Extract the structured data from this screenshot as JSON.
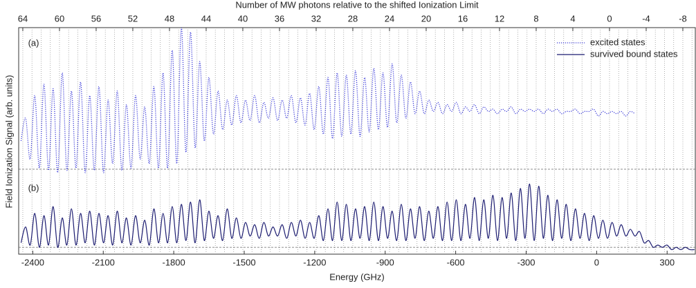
{
  "chart_data": {
    "type": "line",
    "title": "Number of MW photons relative to the shifted Ionization Limit",
    "x_label": "Energy (GHz)",
    "y_label": "Field Ionization Signal (arb. units)",
    "annotations": [
      {
        "text": "(a)",
        "x": -2420,
        "y": 93
      },
      {
        "text": "(b)",
        "x": -2420,
        "y": 29
      }
    ],
    "legend": "upper right",
    "xlim": [
      -2460,
      420
    ],
    "xticks": [
      -2400,
      -2100,
      -1800,
      -1500,
      -1200,
      -900,
      -600,
      -300,
      0,
      300
    ],
    "ylim": [
      0,
      100
    ],
    "x2lim": [
      64.45,
      -9.36
    ],
    "x2ticks": [
      64,
      60,
      56,
      52,
      48,
      44,
      40,
      36,
      32,
      28,
      24,
      20,
      16,
      12,
      8,
      4,
      0,
      -4,
      -8
    ],
    "x2grid": [
      64,
      63,
      62,
      61,
      60,
      59,
      58,
      57,
      56,
      55,
      54,
      53,
      52,
      51,
      50,
      49,
      48,
      47,
      46,
      45,
      44,
      43,
      42,
      41,
      40,
      39,
      38,
      37,
      36,
      35,
      34,
      33,
      32,
      31,
      30,
      29,
      28,
      27,
      26,
      25,
      24,
      23,
      22,
      21,
      20,
      19,
      18,
      17,
      16,
      15,
      14,
      13,
      12,
      11,
      10,
      9,
      8,
      7,
      6,
      5,
      4,
      3,
      2,
      1,
      0,
      -1,
      -2,
      -3,
      -4,
      -5,
      -6,
      -7,
      -8,
      -9
    ],
    "baselines": [
      37.5,
      3
    ],
    "x": [
      -2450,
      -2430.5,
      -2411,
      -2391.5,
      -2372,
      -2352.5,
      -2333,
      -2313.5,
      -2294,
      -2274.5,
      -2255,
      -2235.5,
      -2216,
      -2196.5,
      -2177,
      -2157.5,
      -2138,
      -2118.5,
      -2099,
      -2079.5,
      -2060,
      -2040.5,
      -2021,
      -2001.5,
      -1982,
      -1962.5,
      -1943,
      -1923.5,
      -1904,
      -1884.5,
      -1865,
      -1845.5,
      -1826,
      -1806.5,
      -1787,
      -1767.5,
      -1748,
      -1728.5,
      -1709,
      -1689.5,
      -1670,
      -1650.5,
      -1631,
      -1611.5,
      -1592,
      -1572.5,
      -1553,
      -1533.5,
      -1514,
      -1494.5,
      -1475,
      -1455.5,
      -1436,
      -1416.5,
      -1397,
      -1377.5,
      -1358,
      -1338.5,
      -1319,
      -1299.5,
      -1280,
      -1260.5,
      -1241,
      -1221.5,
      -1202,
      -1182.5,
      -1163,
      -1143.5,
      -1124,
      -1104.5,
      -1085,
      -1065.5,
      -1046,
      -1026.5,
      -1007,
      -987.5,
      -968,
      -948.5,
      -929,
      -909.5,
      -890,
      -870.5,
      -851,
      -831.5,
      -812,
      -792.5,
      -773,
      -753.5,
      -734,
      -714.5,
      -695,
      -675.5,
      -656,
      -636.5,
      -617,
      -597.5,
      -578,
      -558.5,
      -539,
      -519.5,
      -500,
      -480.5,
      -461,
      -441.5,
      -422,
      -402.5,
      -383,
      -363.5,
      -344,
      -324.5,
      -305,
      -285.5,
      -266,
      -246.5,
      -227,
      -207.5,
      -188,
      -168.5,
      -149,
      -129.5,
      -110,
      -90.5,
      -71,
      -51.5,
      -32,
      -12.5,
      7,
      26.5,
      46,
      65.5,
      85,
      104.5,
      124,
      143.5,
      163,
      182.5,
      202,
      221.5,
      241,
      260.5,
      280,
      299.5,
      319,
      338.5,
      358,
      377.5,
      397,
      416.5
    ],
    "series": [
      {
        "name": "excited states",
        "color": "#3a3ad8",
        "style": "dotted",
        "values": [
          50,
          60,
          42,
          70,
          38,
          75,
          37,
          73,
          36,
          80,
          37,
          72,
          38,
          76,
          36,
          70,
          37,
          74,
          36,
          68,
          40,
          72,
          37,
          66,
          38,
          70,
          42,
          65,
          40,
          74,
          38,
          80,
          38,
          90,
          40,
          100,
          45,
          98,
          47,
          85,
          50,
          78,
          53,
          72,
          55,
          68,
          57,
          70,
          58,
          68,
          59,
          70,
          58,
          67,
          60,
          69,
          59,
          68,
          60,
          70,
          58,
          69,
          57,
          71,
          55,
          74,
          53,
          78,
          51,
          80,
          52,
          79,
          53,
          81,
          52,
          78,
          54,
          82,
          55,
          80,
          56,
          84,
          58,
          79,
          60,
          76,
          62,
          72,
          62,
          68,
          63,
          67,
          62,
          66,
          63,
          67,
          62,
          65,
          63,
          66,
          62,
          65,
          63,
          64,
          62,
          64,
          63,
          65,
          62,
          64,
          63,
          64,
          63,
          64,
          62,
          64,
          63,
          64,
          62,
          63,
          63,
          64,
          62,
          63,
          63,
          64,
          61,
          63,
          62,
          63,
          62,
          63,
          61,
          63,
          62,
          null,
          null,
          null,
          null,
          null,
          null,
          null,
          null,
          null,
          null,
          null,
          null,
          null
        ]
      },
      {
        "name": "survived bound states",
        "color": "#1b1b70",
        "style": "solid",
        "values": [
          5,
          12,
          4,
          18,
          3,
          17,
          4,
          21,
          3,
          16,
          4,
          20,
          4,
          18,
          5,
          19,
          4,
          18,
          5,
          17,
          4,
          19,
          5,
          16,
          4,
          17,
          5,
          15,
          4,
          20,
          5,
          18,
          5,
          21,
          5,
          22,
          6,
          23,
          5,
          24,
          6,
          19,
          7,
          17,
          6,
          20,
          7,
          16,
          7,
          14,
          8,
          13,
          7,
          14,
          8,
          12,
          8,
          13,
          7,
          14,
          8,
          15,
          7,
          14,
          7,
          17,
          6,
          20,
          6,
          23,
          6,
          22,
          6,
          20,
          7,
          21,
          6,
          23,
          6,
          21,
          7,
          19,
          6,
          22,
          6,
          20,
          7,
          21,
          6,
          19,
          7,
          21,
          6,
          23,
          6,
          24,
          6,
          22,
          7,
          25,
          6,
          24,
          7,
          26,
          6,
          25,
          7,
          27,
          6,
          29,
          7,
          31,
          6,
          30,
          7,
          26,
          6,
          24,
          7,
          22,
          6,
          20,
          7,
          18,
          6,
          17,
          7,
          15,
          7,
          14,
          8,
          13,
          8,
          11,
          8,
          10,
          5,
          6,
          3,
          4,
          3,
          4,
          2,
          3,
          2,
          3,
          2,
          2
        ]
      }
    ]
  }
}
